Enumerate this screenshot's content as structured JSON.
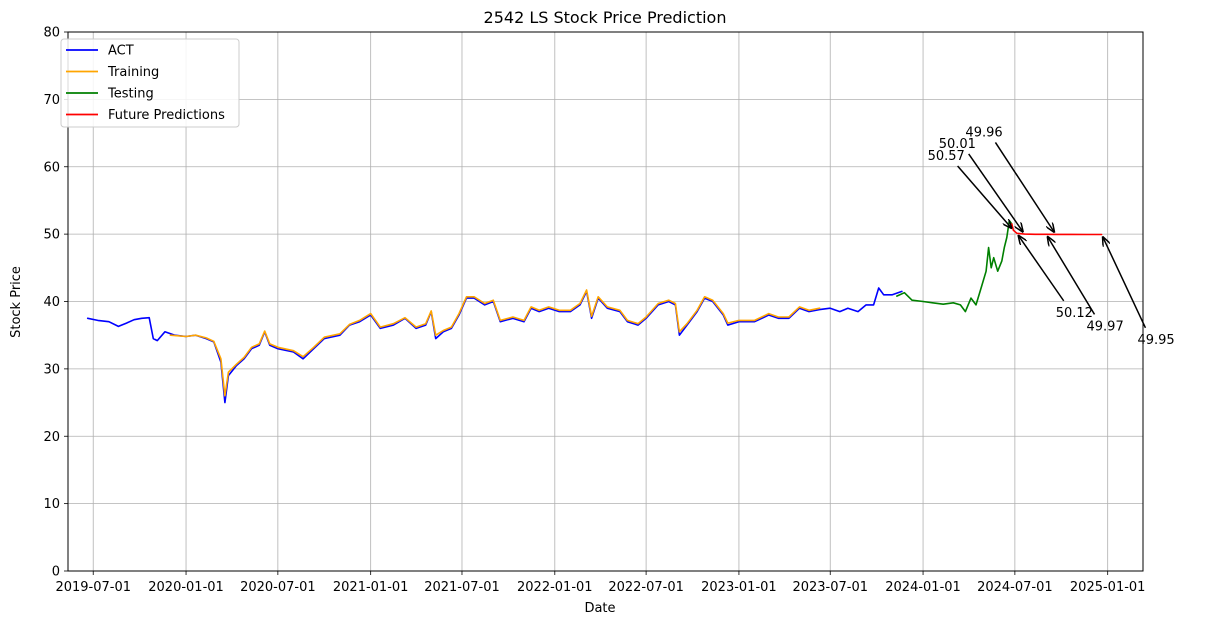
{
  "chart_data": {
    "type": "line",
    "title": "2542 LS Stock Price Prediction",
    "xlabel": "Date",
    "ylabel": "Stock Price",
    "xlim": [
      "2019-05-12",
      "2025-03-12"
    ],
    "ylim": [
      0,
      80
    ],
    "grid": true,
    "legend_position": "top-left",
    "x_ticks": [
      "2019-07-01",
      "2020-01-01",
      "2020-07-01",
      "2021-01-01",
      "2021-07-01",
      "2022-01-01",
      "2022-07-01",
      "2023-01-01",
      "2023-07-01",
      "2024-01-01",
      "2024-07-01",
      "2025-01-01"
    ],
    "y_ticks": [
      0,
      10,
      20,
      30,
      40,
      50,
      60,
      70,
      80
    ],
    "series": [
      {
        "name": "ACT",
        "color": "#0000ff",
        "points": [
          [
            "2019-06-20",
            37.5
          ],
          [
            "2019-07-10",
            37.2
          ],
          [
            "2019-08-01",
            37.0
          ],
          [
            "2019-08-20",
            36.3
          ],
          [
            "2019-09-05",
            36.8
          ],
          [
            "2019-09-20",
            37.3
          ],
          [
            "2019-10-05",
            37.5
          ],
          [
            "2019-10-20",
            37.6
          ],
          [
            "2019-10-28",
            34.5
          ],
          [
            "2019-11-05",
            34.2
          ],
          [
            "2019-11-20",
            35.5
          ],
          [
            "2019-12-10",
            35.0
          ],
          [
            "2020-01-01",
            34.8
          ],
          [
            "2020-01-20",
            35.0
          ],
          [
            "2020-02-10",
            34.5
          ],
          [
            "2020-02-25",
            34.0
          ],
          [
            "2020-03-10",
            31.0
          ],
          [
            "2020-03-18",
            25.0
          ],
          [
            "2020-03-25",
            29.0
          ],
          [
            "2020-04-10",
            30.5
          ],
          [
            "2020-04-25",
            31.5
          ],
          [
            "2020-05-10",
            33.0
          ],
          [
            "2020-05-25",
            33.5
          ],
          [
            "2020-06-05",
            35.5
          ],
          [
            "2020-06-15",
            33.5
          ],
          [
            "2020-07-01",
            33.0
          ],
          [
            "2020-08-01",
            32.5
          ],
          [
            "2020-08-20",
            31.5
          ],
          [
            "2020-09-10",
            33.0
          ],
          [
            "2020-10-01",
            34.5
          ],
          [
            "2020-11-01",
            35.0
          ],
          [
            "2020-11-20",
            36.5
          ],
          [
            "2020-12-10",
            37.0
          ],
          [
            "2021-01-01",
            38.0
          ],
          [
            "2021-01-20",
            36.0
          ],
          [
            "2021-02-15",
            36.5
          ],
          [
            "2021-03-10",
            37.5
          ],
          [
            "2021-04-01",
            36.0
          ],
          [
            "2021-04-20",
            36.5
          ],
          [
            "2021-05-01",
            38.5
          ],
          [
            "2021-05-10",
            34.5
          ],
          [
            "2021-05-25",
            35.5
          ],
          [
            "2021-06-10",
            36.0
          ],
          [
            "2021-06-25",
            38.0
          ],
          [
            "2021-07-10",
            40.5
          ],
          [
            "2021-07-25",
            40.5
          ],
          [
            "2021-08-15",
            39.5
          ],
          [
            "2021-09-01",
            40.0
          ],
          [
            "2021-09-15",
            37.0
          ],
          [
            "2021-10-10",
            37.5
          ],
          [
            "2021-11-01",
            37.0
          ],
          [
            "2021-11-15",
            39.0
          ],
          [
            "2021-12-01",
            38.5
          ],
          [
            "2021-12-20",
            39.0
          ],
          [
            "2022-01-10",
            38.5
          ],
          [
            "2022-02-01",
            38.5
          ],
          [
            "2022-02-20",
            39.5
          ],
          [
            "2022-03-05",
            41.5
          ],
          [
            "2022-03-15",
            37.5
          ],
          [
            "2022-03-28",
            40.5
          ],
          [
            "2022-04-15",
            39.0
          ],
          [
            "2022-05-10",
            38.5
          ],
          [
            "2022-05-25",
            37.0
          ],
          [
            "2022-06-15",
            36.5
          ],
          [
            "2022-07-01",
            37.5
          ],
          [
            "2022-07-25",
            39.5
          ],
          [
            "2022-08-15",
            40.0
          ],
          [
            "2022-08-28",
            39.5
          ],
          [
            "2022-09-05",
            35.0
          ],
          [
            "2022-09-20",
            36.5
          ],
          [
            "2022-10-10",
            38.5
          ],
          [
            "2022-10-25",
            40.5
          ],
          [
            "2022-11-10",
            40.0
          ],
          [
            "2022-12-01",
            38.0
          ],
          [
            "2022-12-10",
            36.5
          ],
          [
            "2023-01-01",
            37.0
          ],
          [
            "2023-02-01",
            37.0
          ],
          [
            "2023-03-01",
            38.0
          ],
          [
            "2023-03-20",
            37.5
          ],
          [
            "2023-04-10",
            37.5
          ],
          [
            "2023-05-01",
            39.0
          ],
          [
            "2023-05-20",
            38.5
          ],
          [
            "2023-06-10",
            38.8
          ],
          [
            "2023-07-01",
            39.0
          ],
          [
            "2023-07-20",
            38.5
          ],
          [
            "2023-08-05",
            39.0
          ],
          [
            "2023-08-25",
            38.5
          ],
          [
            "2023-09-10",
            39.5
          ],
          [
            "2023-09-25",
            39.5
          ],
          [
            "2023-10-05",
            42.0
          ],
          [
            "2023-10-15",
            41.0
          ],
          [
            "2023-11-01",
            41.0
          ],
          [
            "2023-11-20",
            41.5
          ]
        ]
      },
      {
        "name": "Training",
        "color": "#ffa500",
        "points": [
          [
            "2019-12-01",
            35.0
          ],
          [
            "2020-01-01",
            34.8
          ],
          [
            "2020-01-20",
            35.0
          ],
          [
            "2020-02-10",
            34.6
          ],
          [
            "2020-02-25",
            34.1
          ],
          [
            "2020-03-10",
            31.5
          ],
          [
            "2020-03-18",
            26.0
          ],
          [
            "2020-03-25",
            29.5
          ],
          [
            "2020-04-10",
            30.7
          ],
          [
            "2020-04-25",
            31.7
          ],
          [
            "2020-05-10",
            33.2
          ],
          [
            "2020-05-25",
            33.7
          ],
          [
            "2020-06-05",
            35.6
          ],
          [
            "2020-06-15",
            33.7
          ],
          [
            "2020-07-01",
            33.2
          ],
          [
            "2020-08-01",
            32.7
          ],
          [
            "2020-08-20",
            31.8
          ],
          [
            "2020-09-10",
            33.2
          ],
          [
            "2020-10-01",
            34.7
          ],
          [
            "2020-11-01",
            35.2
          ],
          [
            "2020-11-20",
            36.6
          ],
          [
            "2020-12-10",
            37.2
          ],
          [
            "2021-01-01",
            38.2
          ],
          [
            "2021-01-20",
            36.2
          ],
          [
            "2021-02-15",
            36.7
          ],
          [
            "2021-03-10",
            37.6
          ],
          [
            "2021-04-01",
            36.2
          ],
          [
            "2021-04-20",
            36.7
          ],
          [
            "2021-05-01",
            38.6
          ],
          [
            "2021-05-10",
            35.0
          ],
          [
            "2021-05-25",
            35.7
          ],
          [
            "2021-06-10",
            36.2
          ],
          [
            "2021-06-25",
            38.2
          ],
          [
            "2021-07-10",
            40.7
          ],
          [
            "2021-07-25",
            40.7
          ],
          [
            "2021-08-15",
            39.7
          ],
          [
            "2021-09-01",
            40.2
          ],
          [
            "2021-09-15",
            37.2
          ],
          [
            "2021-10-10",
            37.7
          ],
          [
            "2021-11-01",
            37.2
          ],
          [
            "2021-11-15",
            39.2
          ],
          [
            "2021-12-01",
            38.7
          ],
          [
            "2021-12-20",
            39.2
          ],
          [
            "2022-01-10",
            38.7
          ],
          [
            "2022-02-01",
            38.7
          ],
          [
            "2022-02-20",
            39.7
          ],
          [
            "2022-03-05",
            41.7
          ],
          [
            "2022-03-15",
            37.8
          ],
          [
            "2022-03-28",
            40.7
          ],
          [
            "2022-04-15",
            39.2
          ],
          [
            "2022-05-10",
            38.7
          ],
          [
            "2022-05-25",
            37.2
          ],
          [
            "2022-06-15",
            36.7
          ],
          [
            "2022-07-01",
            37.7
          ],
          [
            "2022-07-25",
            39.7
          ],
          [
            "2022-08-15",
            40.2
          ],
          [
            "2022-08-28",
            39.7
          ],
          [
            "2022-09-05",
            35.5
          ],
          [
            "2022-09-20",
            36.7
          ],
          [
            "2022-10-10",
            38.7
          ],
          [
            "2022-10-25",
            40.7
          ],
          [
            "2022-11-10",
            40.2
          ],
          [
            "2022-12-01",
            38.2
          ],
          [
            "2022-12-10",
            36.8
          ],
          [
            "2023-01-01",
            37.2
          ],
          [
            "2023-02-01",
            37.2
          ],
          [
            "2023-03-01",
            38.2
          ],
          [
            "2023-03-20",
            37.7
          ],
          [
            "2023-04-10",
            37.7
          ],
          [
            "2023-05-01",
            39.2
          ],
          [
            "2023-05-20",
            38.7
          ],
          [
            "2023-06-10",
            39.0
          ]
        ]
      },
      {
        "name": "Testing",
        "color": "#008000",
        "points": [
          [
            "2023-11-10",
            40.8
          ],
          [
            "2023-11-25",
            41.3
          ],
          [
            "2023-12-10",
            40.2
          ],
          [
            "2024-01-01",
            40.0
          ],
          [
            "2024-01-20",
            39.8
          ],
          [
            "2024-02-10",
            39.6
          ],
          [
            "2024-03-01",
            39.8
          ],
          [
            "2024-03-15",
            39.5
          ],
          [
            "2024-03-25",
            38.5
          ],
          [
            "2024-04-05",
            40.5
          ],
          [
            "2024-04-15",
            39.5
          ],
          [
            "2024-04-25",
            42.0
          ],
          [
            "2024-05-05",
            44.5
          ],
          [
            "2024-05-10",
            48.0
          ],
          [
            "2024-05-15",
            45.0
          ],
          [
            "2024-05-20",
            46.5
          ],
          [
            "2024-05-28",
            44.5
          ],
          [
            "2024-06-05",
            46.0
          ],
          [
            "2024-06-10",
            48.0
          ],
          [
            "2024-06-15",
            49.5
          ],
          [
            "2024-06-20",
            52.0
          ],
          [
            "2024-06-25",
            51.5
          ]
        ]
      },
      {
        "name": "Future Predictions",
        "color": "#ff0000",
        "points": [
          [
            "2024-06-25",
            51.5
          ],
          [
            "2024-06-28",
            50.57
          ],
          [
            "2024-07-05",
            50.12
          ],
          [
            "2024-07-20",
            50.01
          ],
          [
            "2024-08-10",
            49.98
          ],
          [
            "2024-09-01",
            49.97
          ],
          [
            "2024-09-20",
            49.96
          ],
          [
            "2024-10-20",
            49.96
          ],
          [
            "2024-11-20",
            49.95
          ],
          [
            "2024-12-20",
            49.95
          ]
        ]
      }
    ],
    "annotations": [
      {
        "label": "50.57",
        "target": [
          "2024-06-28",
          50.57
        ],
        "text_pos": [
          "2024-01-10",
          61.0
        ]
      },
      {
        "label": "50.01",
        "target": [
          "2024-07-20",
          50.01
        ],
        "text_pos": [
          "2024-02-01",
          62.8
        ]
      },
      {
        "label": "49.96",
        "target": [
          "2024-09-20",
          49.96
        ],
        "text_pos": [
          "2024-03-25",
          64.5
        ]
      },
      {
        "label": "50.12",
        "target": [
          "2024-07-05",
          50.12
        ],
        "text_pos": [
          "2024-09-20",
          39.5
        ]
      },
      {
        "label": "49.97",
        "target": [
          "2024-09-01",
          49.97
        ],
        "text_pos": [
          "2024-11-20",
          37.5
        ]
      },
      {
        "label": "49.95",
        "target": [
          "2024-12-20",
          49.95
        ],
        "text_pos": [
          "2025-03-01",
          35.5
        ]
      }
    ]
  }
}
